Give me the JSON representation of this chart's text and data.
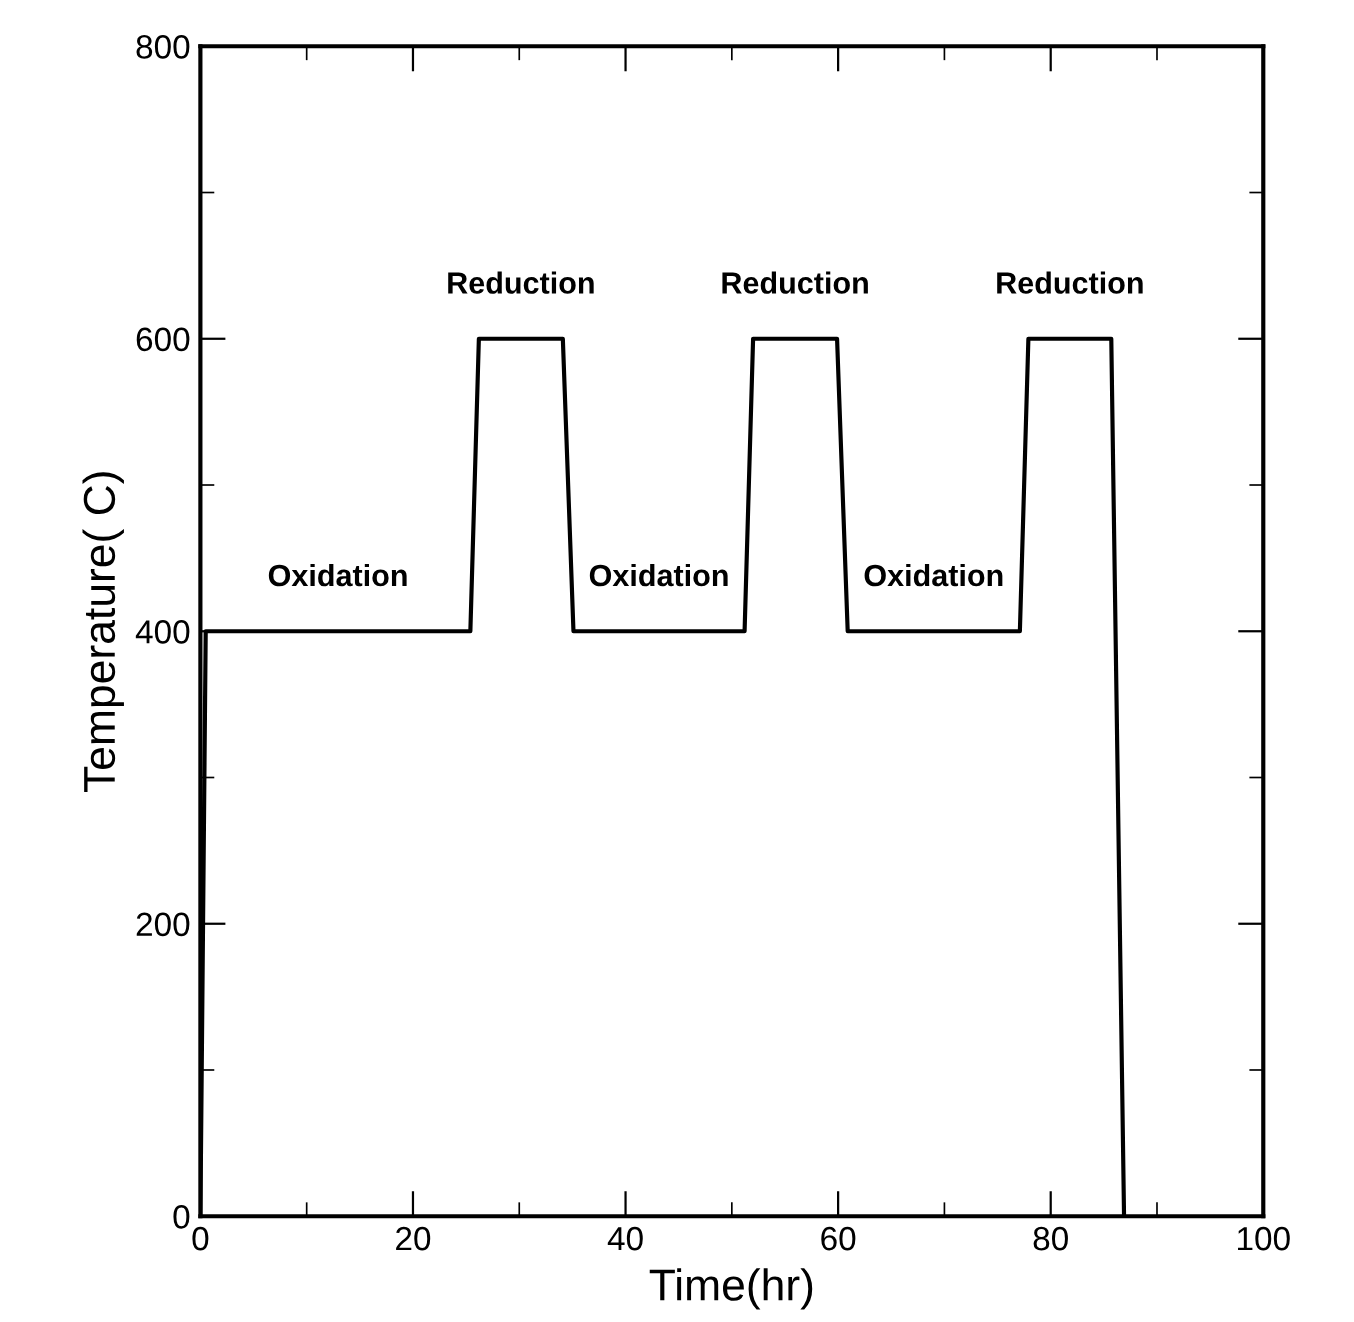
{
  "chart_data": {
    "type": "line",
    "xlabel": "Time(hr)",
    "ylabel": "Temperature( C)",
    "series": [
      {
        "color": "#000000",
        "x": [
          0,
          0.5,
          1,
          25.4,
          26.2,
          34.1,
          35.1,
          51.2,
          52.0,
          59.9,
          60.9,
          77.1,
          77.9,
          85.7,
          86.9
        ],
        "values": [
          0,
          400,
          400,
          400,
          600,
          600,
          400,
          400,
          600,
          600,
          400,
          400,
          600,
          600,
          0
        ]
      }
    ],
    "xlim": [
      0,
      100
    ],
    "xticks": [
      0,
      20,
      40,
      60,
      80,
      100
    ],
    "ylim": [
      0,
      800
    ],
    "yticks": [
      0,
      200,
      400,
      600,
      800
    ],
    "grid": false,
    "legend": false,
    "marker": "none",
    "line_style": "solid",
    "annotations": [
      "Oxidation",
      "Reduction",
      "Oxidation",
      "Reduction",
      "Oxidation",
      "Reduction"
    ]
  }
}
